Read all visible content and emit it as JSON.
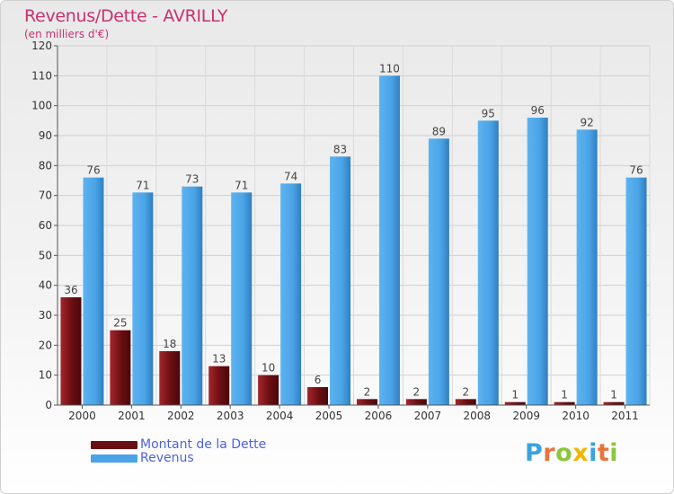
{
  "title": "Revenus/Dette - AVRILLY",
  "subtitle": "(en milliers d'€)",
  "logo": {
    "text": "Proxiti",
    "letter_colors": [
      "#3aa3e0",
      "#e8743b",
      "#8cc63f",
      "#f2b705",
      "#3aa3e0",
      "#e8743b",
      "#8cc63f"
    ]
  },
  "colors": {
    "dette": "#6b0e12",
    "revenus": "#4aa3e6"
  },
  "chart_data": {
    "type": "bar",
    "categories": [
      "2000",
      "2001",
      "2002",
      "2003",
      "2004",
      "2005",
      "2006",
      "2007",
      "2008",
      "2009",
      "2010",
      "2011"
    ],
    "series": [
      {
        "name": "Montant de la Dette",
        "values": [
          36,
          25,
          18,
          13,
          10,
          6,
          2,
          2,
          2,
          1,
          1,
          1
        ]
      },
      {
        "name": "Revenus",
        "values": [
          76,
          71,
          73,
          71,
          74,
          83,
          110,
          89,
          95,
          96,
          92,
          76
        ]
      }
    ],
    "ylim": [
      0,
      120
    ],
    "yticks": [
      0,
      10,
      20,
      30,
      40,
      50,
      60,
      70,
      80,
      90,
      100,
      110,
      120
    ],
    "grid": true,
    "legend_position": "bottom-left"
  }
}
